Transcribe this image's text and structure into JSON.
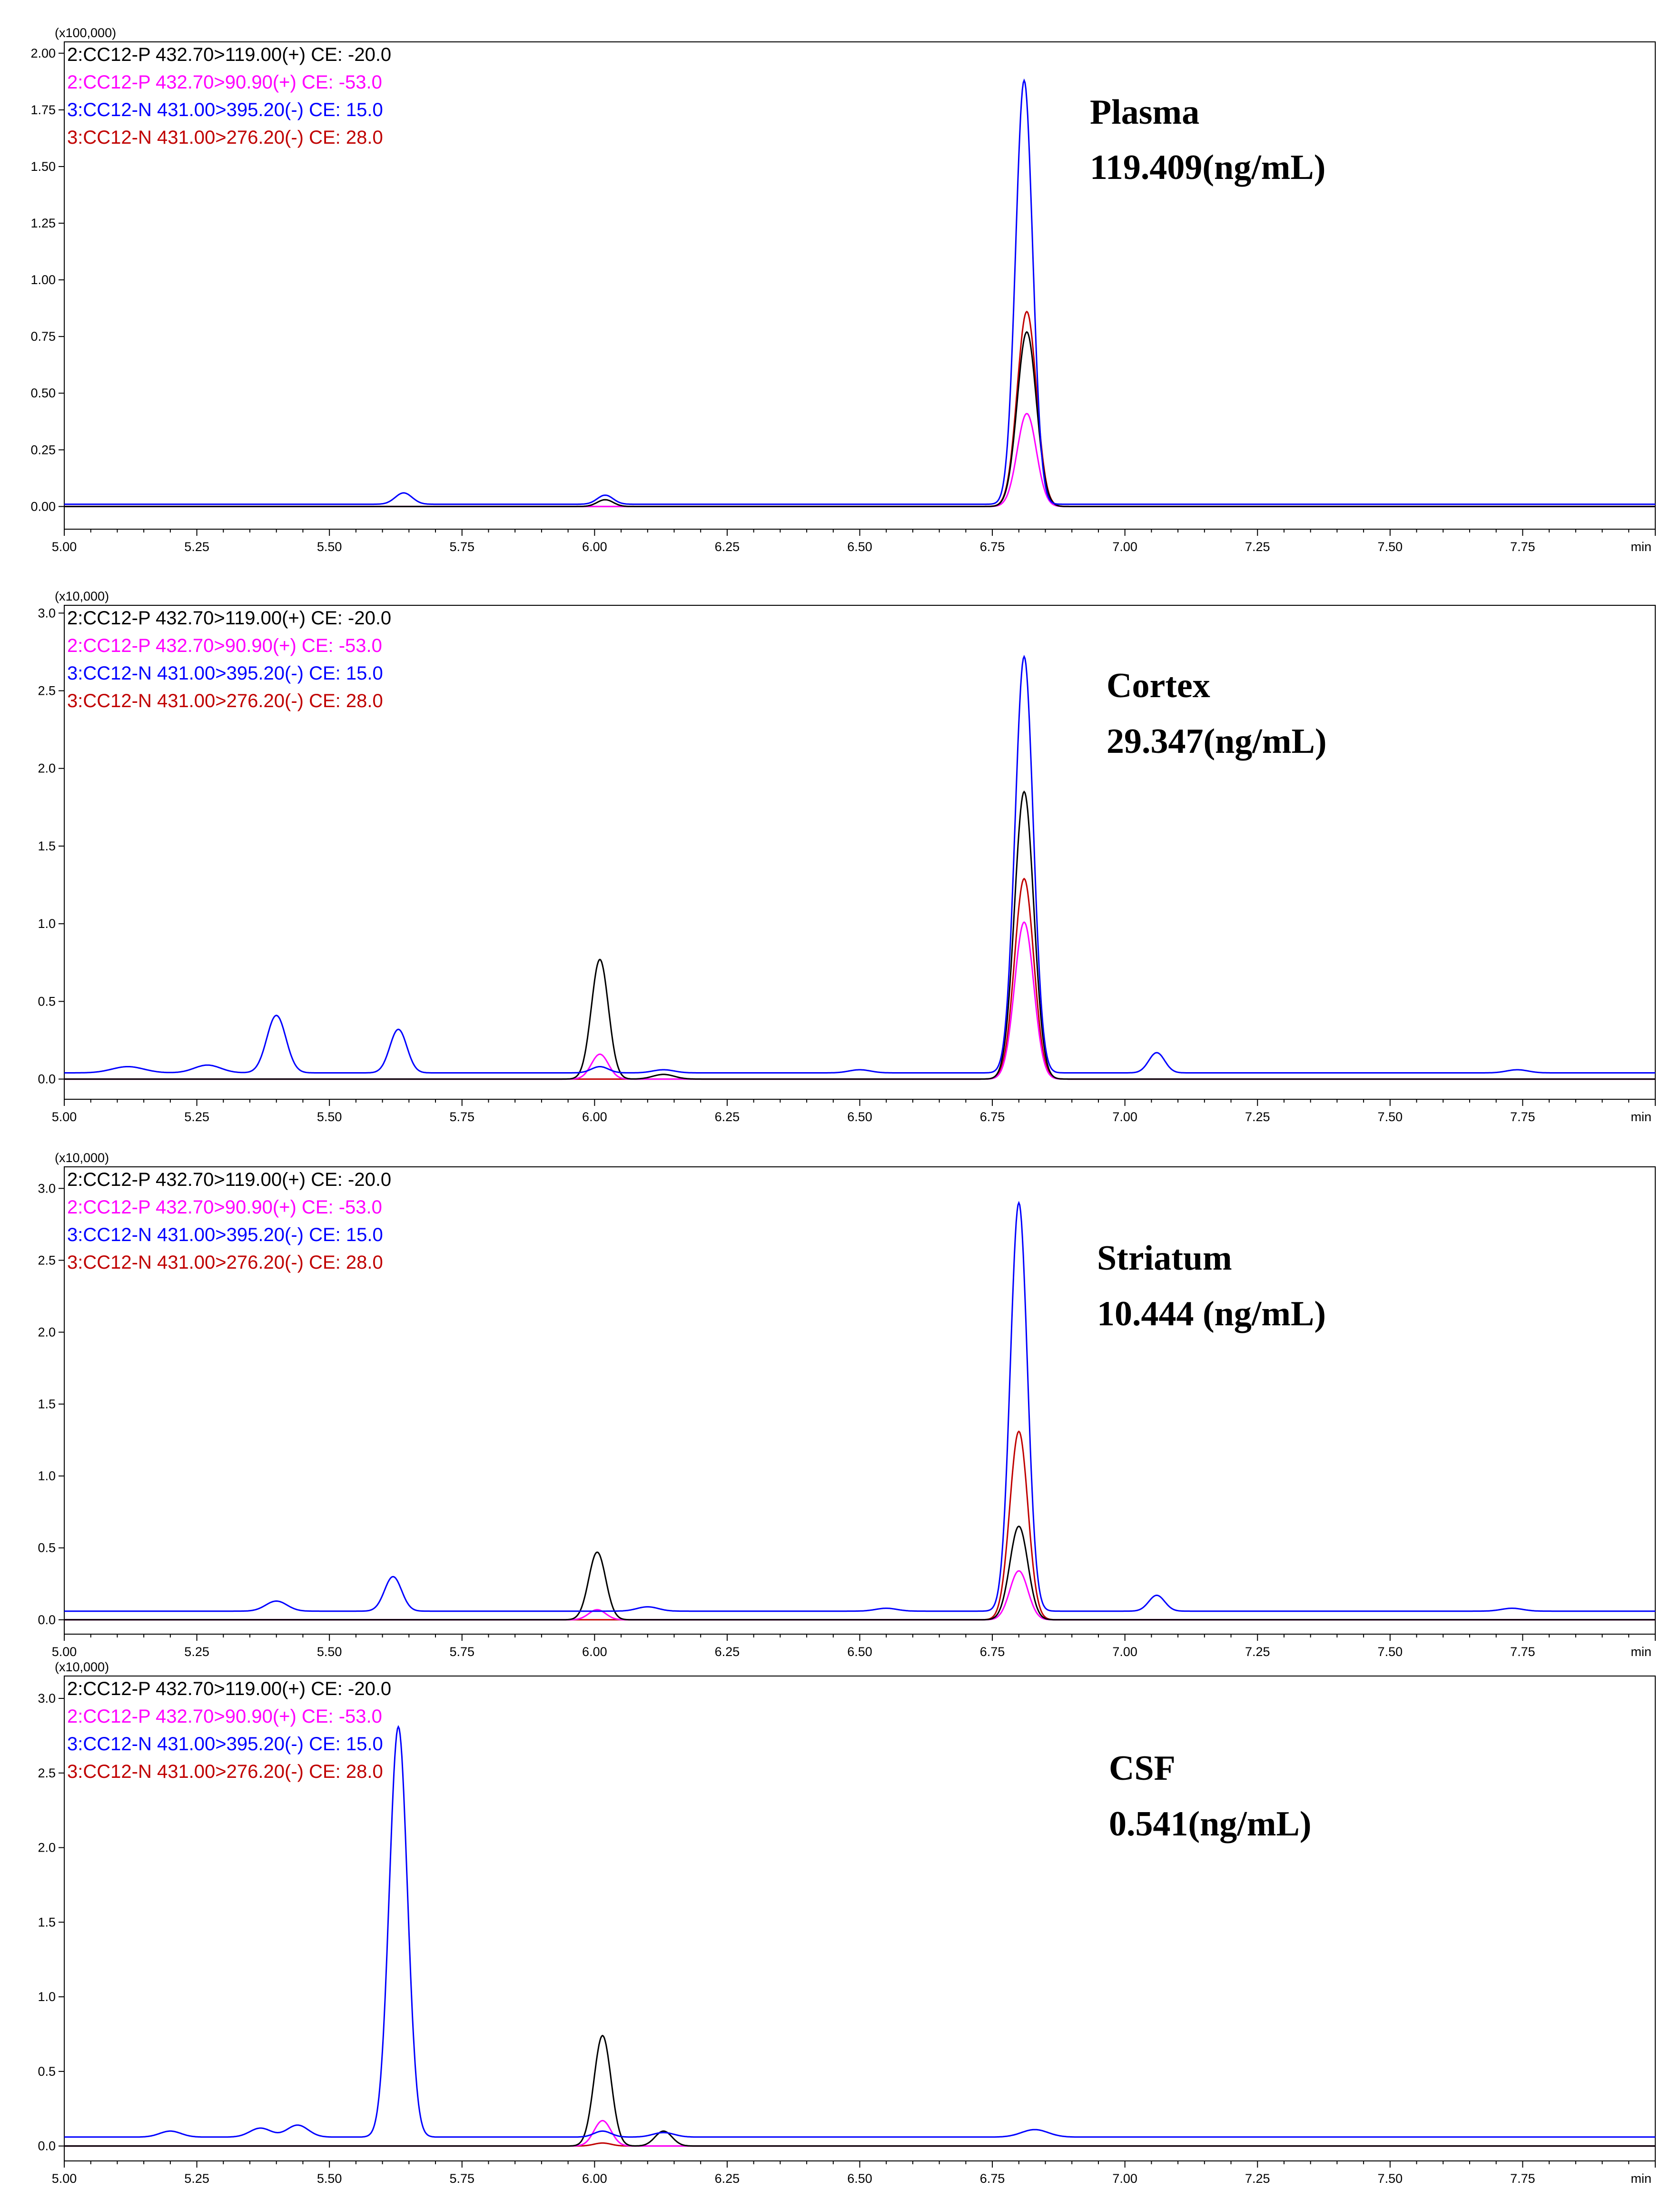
{
  "chart_data": [
    {
      "type": "line",
      "sample": "Plasma",
      "concentration": "119.409(ng/mL)",
      "y_multiplier": "(x100,000)",
      "ylim": [
        -0.1,
        2.05
      ],
      "yticks": [
        "0.00",
        "0.25",
        "0.50",
        "0.75",
        "1.00",
        "1.25",
        "1.50",
        "1.75",
        "2.00"
      ],
      "xlim": [
        5.0,
        8.0
      ],
      "xticks": [
        "5.00",
        "5.25",
        "5.50",
        "5.75",
        "6.00",
        "6.25",
        "6.50",
        "6.75",
        "7.00",
        "7.25",
        "7.50",
        "7.75"
      ],
      "xunit": "min",
      "series": [
        {
          "name": "2:CC12-P 432.70>119.00(+) CE: -20.0",
          "color": "#000000",
          "baseline": 0.0,
          "peaks": [
            [
              6.02,
              0.03,
              0.015
            ],
            [
              6.815,
              0.77,
              0.018
            ]
          ]
        },
        {
          "name": "2:CC12-P 432.70>90.90(+) CE: -53.0",
          "color": "#ff00ff",
          "baseline": 0.0,
          "peaks": [
            [
              6.815,
              0.41,
              0.018
            ]
          ]
        },
        {
          "name": "3:CC12-N 431.00>395.20(-) CE: 15.0",
          "color": "#0000ff",
          "baseline": 0.01,
          "peaks": [
            [
              5.64,
              0.05,
              0.016
            ],
            [
              6.02,
              0.04,
              0.015
            ],
            [
              6.81,
              1.87,
              0.016
            ]
          ]
        },
        {
          "name": "3:CC12-N 431.00>276.20(-) CE: 28.0",
          "color": "#c00000",
          "baseline": 0.0,
          "peaks": [
            [
              6.815,
              0.86,
              0.018
            ]
          ]
        }
      ]
    },
    {
      "type": "line",
      "sample": "Cortex",
      "concentration": "29.347(ng/mL)",
      "y_multiplier": "(x10,000)",
      "ylim": [
        -0.13,
        3.05
      ],
      "yticks": [
        "0.0",
        "0.5",
        "1.0",
        "1.5",
        "2.0",
        "2.5",
        "3.0"
      ],
      "xlim": [
        5.0,
        8.0
      ],
      "xticks": [
        "5.00",
        "5.25",
        "5.50",
        "5.75",
        "6.00",
        "6.25",
        "6.50",
        "6.75",
        "7.00",
        "7.25",
        "7.50",
        "7.75"
      ],
      "xunit": "min",
      "series": [
        {
          "name": "2:CC12-P 432.70>119.00(+) CE: -20.0",
          "color": "#000000",
          "baseline": 0.0,
          "peaks": [
            [
              6.01,
              0.77,
              0.016
            ],
            [
              6.13,
              0.03,
              0.02
            ],
            [
              6.81,
              1.85,
              0.018
            ]
          ]
        },
        {
          "name": "2:CC12-P 432.70>90.90(+) CE: -53.0",
          "color": "#ff00ff",
          "baseline": 0.0,
          "peaks": [
            [
              6.01,
              0.16,
              0.016
            ],
            [
              6.81,
              1.01,
              0.018
            ]
          ]
        },
        {
          "name": "3:CC12-N 431.00>395.20(-) CE: 15.0",
          "color": "#0000ff",
          "baseline": 0.04,
          "peaks": [
            [
              5.12,
              0.04,
              0.03
            ],
            [
              5.27,
              0.05,
              0.025
            ],
            [
              5.4,
              0.37,
              0.018
            ],
            [
              5.63,
              0.28,
              0.016
            ],
            [
              6.01,
              0.04,
              0.016
            ],
            [
              6.13,
              0.02,
              0.02
            ],
            [
              6.5,
              0.02,
              0.02
            ],
            [
              6.81,
              2.68,
              0.017
            ],
            [
              7.06,
              0.13,
              0.015
            ],
            [
              7.74,
              0.02,
              0.02
            ]
          ]
        },
        {
          "name": "3:CC12-N 431.00>276.20(-) CE: 28.0",
          "color": "#c00000",
          "baseline": 0.0,
          "peaks": [
            [
              6.81,
              1.29,
              0.018
            ]
          ]
        }
      ]
    },
    {
      "type": "line",
      "sample": "Striatum",
      "concentration": "10.444 (ng/mL)",
      "y_multiplier": "(x10,000)",
      "ylim": [
        -0.1,
        3.15
      ],
      "yticks": [
        "0.0",
        "0.5",
        "1.0",
        "1.5",
        "2.0",
        "2.5",
        "3.0"
      ],
      "xlim": [
        5.0,
        8.0
      ],
      "xticks": [
        "5.00",
        "5.25",
        "5.50",
        "5.75",
        "6.00",
        "6.25",
        "6.50",
        "6.75",
        "7.00",
        "7.25",
        "7.50",
        "7.75"
      ],
      "xunit": "min",
      "series": [
        {
          "name": "2:CC12-P 432.70>119.00(+) CE: -20.0",
          "color": "#000000",
          "baseline": 0.0,
          "peaks": [
            [
              6.005,
              0.47,
              0.016
            ],
            [
              6.8,
              0.65,
              0.017
            ]
          ]
        },
        {
          "name": "2:CC12-P 432.70>90.90(+) CE: -53.0",
          "color": "#ff00ff",
          "baseline": 0.0,
          "peaks": [
            [
              6.005,
              0.07,
              0.016
            ],
            [
              6.8,
              0.34,
              0.017
            ]
          ]
        },
        {
          "name": "3:CC12-N 431.00>395.20(-) CE: 15.0",
          "color": "#0000ff",
          "baseline": 0.06,
          "peaks": [
            [
              5.4,
              0.07,
              0.02
            ],
            [
              5.62,
              0.24,
              0.016
            ],
            [
              6.1,
              0.03,
              0.02
            ],
            [
              6.55,
              0.02,
              0.02
            ],
            [
              6.8,
              2.84,
              0.016
            ],
            [
              7.06,
              0.11,
              0.015
            ],
            [
              7.73,
              0.02,
              0.02
            ]
          ]
        },
        {
          "name": "3:CC12-N 431.00>276.20(-) CE: 28.0",
          "color": "#c00000",
          "baseline": 0.0,
          "peaks": [
            [
              6.8,
              1.31,
              0.017
            ]
          ]
        }
      ]
    },
    {
      "type": "line",
      "sample": "CSF",
      "concentration": "0.541(ng/mL)",
      "y_multiplier": "(x10,000)",
      "ylim": [
        -0.1,
        3.15
      ],
      "yticks": [
        "0.0",
        "0.5",
        "1.0",
        "1.5",
        "2.0",
        "2.5",
        "3.0"
      ],
      "xlim": [
        5.0,
        8.0
      ],
      "xticks": [
        "5.00",
        "5.25",
        "5.50",
        "5.75",
        "6.00",
        "6.25",
        "6.50",
        "6.75",
        "7.00",
        "7.25",
        "7.50",
        "7.75"
      ],
      "xunit": "min",
      "series": [
        {
          "name": "2:CC12-P 432.70>119.00(+) CE: -20.0",
          "color": "#000000",
          "baseline": 0.0,
          "peaks": [
            [
              6.015,
              0.74,
              0.016
            ],
            [
              6.13,
              0.1,
              0.016
            ]
          ]
        },
        {
          "name": "2:CC12-P 432.70>90.90(+) CE: -53.0",
          "color": "#ff00ff",
          "baseline": 0.0,
          "peaks": [
            [
              6.015,
              0.17,
              0.016
            ]
          ]
        },
        {
          "name": "3:CC12-N 431.00>395.20(-) CE: 15.0",
          "color": "#0000ff",
          "baseline": 0.06,
          "peaks": [
            [
              5.2,
              0.04,
              0.02
            ],
            [
              5.37,
              0.06,
              0.02
            ],
            [
              5.44,
              0.08,
              0.02
            ],
            [
              5.63,
              2.75,
              0.017
            ],
            [
              6.015,
              0.04,
              0.016
            ],
            [
              6.13,
              0.03,
              0.02
            ],
            [
              6.83,
              0.05,
              0.025
            ]
          ]
        },
        {
          "name": "3:CC12-N 431.00>276.20(-) CE: 28.0",
          "color": "#c00000",
          "baseline": 0.0,
          "peaks": [
            [
              6.015,
              0.02,
              0.016
            ]
          ]
        }
      ]
    }
  ]
}
